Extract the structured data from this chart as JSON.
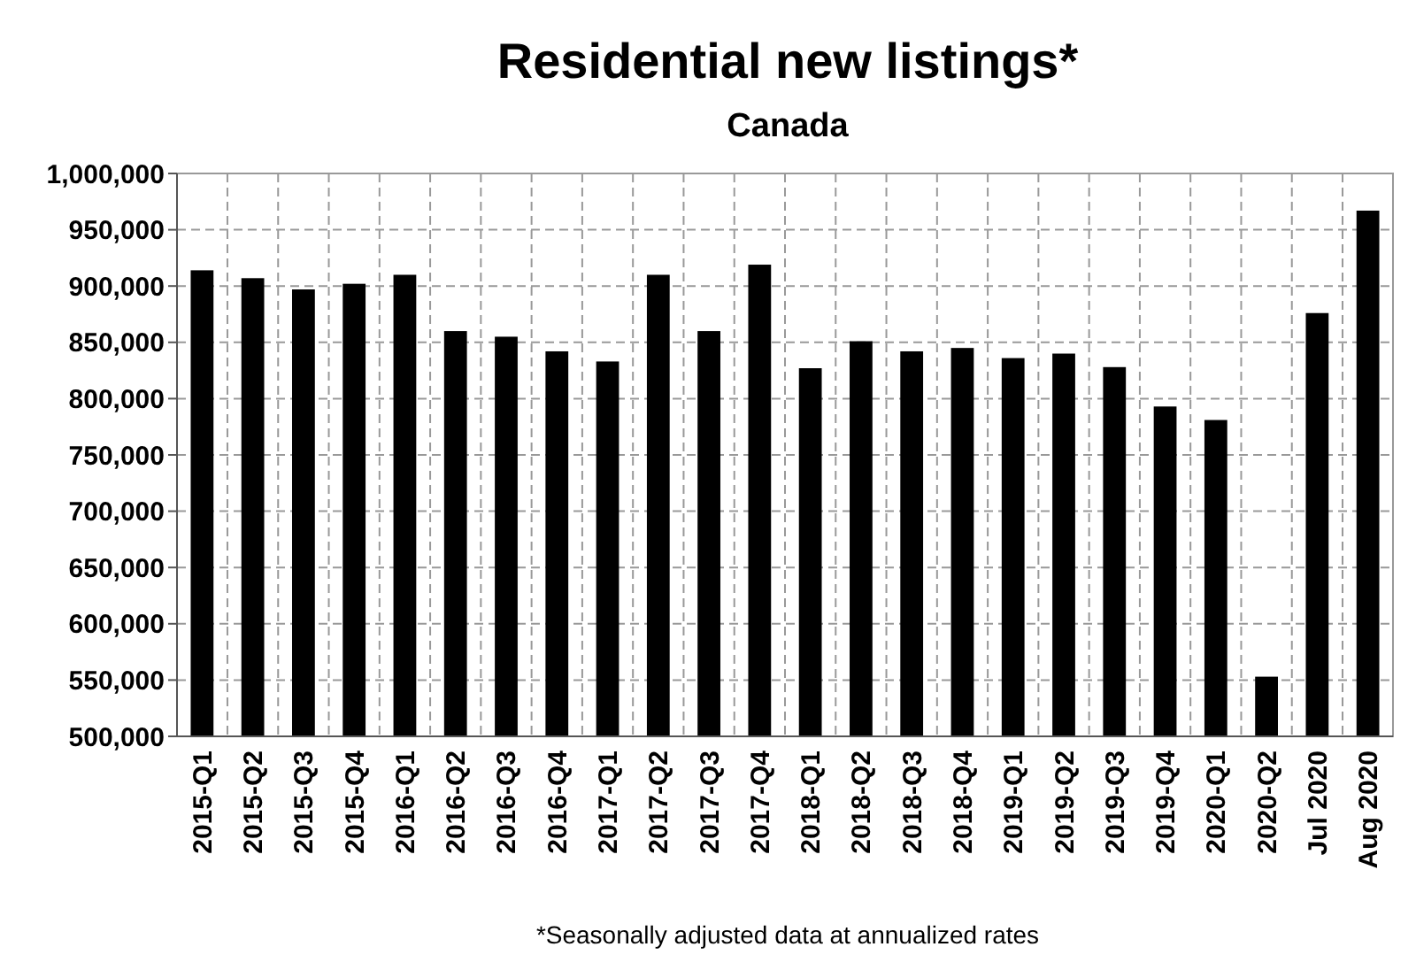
{
  "chart_data": {
    "type": "bar",
    "title": "Residential new listings*",
    "subtitle": "Canada",
    "categories": [
      "2015-Q1",
      "2015-Q2",
      "2015-Q3",
      "2015-Q4",
      "2016-Q1",
      "2016-Q2",
      "2016-Q3",
      "2016-Q4",
      "2017-Q1",
      "2017-Q2",
      "2017-Q3",
      "2017-Q4",
      "2018-Q1",
      "2018-Q2",
      "2018-Q3",
      "2018-Q4",
      "2019-Q1",
      "2019-Q2",
      "2019-Q3",
      "2019-Q4",
      "2020-Q1",
      "2020-Q2",
      "Jul 2020",
      "Aug 2020"
    ],
    "values": [
      914000,
      907000,
      897000,
      902000,
      910000,
      860000,
      855000,
      842000,
      833000,
      910000,
      860000,
      919000,
      827000,
      851000,
      842000,
      845000,
      836000,
      840000,
      828000,
      793000,
      781000,
      553000,
      876000,
      967000
    ],
    "color": "#000000",
    "ylim": [
      500000,
      1000000
    ],
    "yticks": [
      {
        "value": 500000,
        "label": "500,000"
      },
      {
        "value": 550000,
        "label": "550,000"
      },
      {
        "value": 600000,
        "label": "600,000"
      },
      {
        "value": 650000,
        "label": "650,000"
      },
      {
        "value": 700000,
        "label": "700,000"
      },
      {
        "value": 750000,
        "label": "750,000"
      },
      {
        "value": 800000,
        "label": "800,000"
      },
      {
        "value": 850000,
        "label": "850,000"
      },
      {
        "value": 900000,
        "label": "900,000"
      },
      {
        "value": 950000,
        "label": "950,000"
      },
      {
        "value": 1000000,
        "label": "1,000,000"
      }
    ],
    "grid": true,
    "annotations": [
      "*Seasonally adjusted data at annualized rates"
    ]
  }
}
